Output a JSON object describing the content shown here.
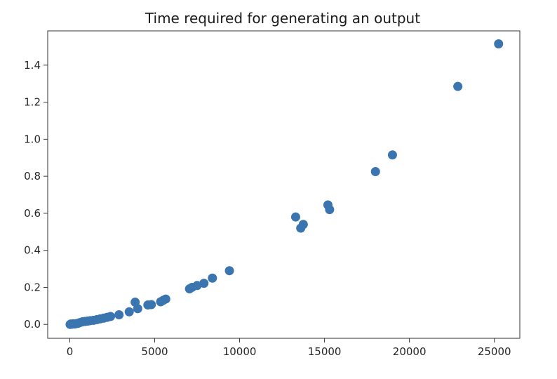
{
  "chart_data": {
    "type": "scatter",
    "title": "Time required for generating an output",
    "xlabel": "",
    "ylabel": "",
    "xlim": [
      -1300,
      26500
    ],
    "ylim": [
      -0.075,
      1.585
    ],
    "xticks": [
      0,
      5000,
      10000,
      15000,
      20000,
      25000
    ],
    "xtick_labels": [
      "0",
      "5000",
      "10000",
      "15000",
      "20000",
      "25000"
    ],
    "yticks": [
      0.0,
      0.2,
      0.4,
      0.6,
      0.8,
      1.0,
      1.2,
      1.4
    ],
    "ytick_labels": [
      "0.0",
      "0.2",
      "0.4",
      "0.6",
      "0.8",
      "1.0",
      "1.2",
      "1.4"
    ],
    "grid": false,
    "marker_color": "#3a75b0",
    "series": [
      {
        "points": [
          [
            20,
            0.0
          ],
          [
            60,
            0.002
          ],
          [
            120,
            0.001
          ],
          [
            200,
            0.003
          ],
          [
            280,
            0.002
          ],
          [
            380,
            0.004
          ],
          [
            480,
            0.006
          ],
          [
            600,
            0.01
          ],
          [
            750,
            0.014
          ],
          [
            900,
            0.016
          ],
          [
            1050,
            0.018
          ],
          [
            1200,
            0.02
          ],
          [
            1400,
            0.022
          ],
          [
            1600,
            0.026
          ],
          [
            1800,
            0.03
          ],
          [
            2000,
            0.034
          ],
          [
            2200,
            0.038
          ],
          [
            2400,
            0.043
          ],
          [
            2900,
            0.052
          ],
          [
            3500,
            0.068
          ],
          [
            3850,
            0.12
          ],
          [
            4000,
            0.085
          ],
          [
            4600,
            0.105
          ],
          [
            4800,
            0.107
          ],
          [
            5350,
            0.122
          ],
          [
            5500,
            0.13
          ],
          [
            5650,
            0.137
          ],
          [
            7050,
            0.192
          ],
          [
            7200,
            0.2
          ],
          [
            7500,
            0.21
          ],
          [
            7900,
            0.222
          ],
          [
            8400,
            0.25
          ],
          [
            9400,
            0.29
          ],
          [
            13300,
            0.58
          ],
          [
            13600,
            0.52
          ],
          [
            13750,
            0.54
          ],
          [
            15200,
            0.645
          ],
          [
            15300,
            0.62
          ],
          [
            18000,
            0.825
          ],
          [
            19000,
            0.915
          ],
          [
            22850,
            1.285
          ],
          [
            25250,
            1.515
          ]
        ]
      }
    ]
  }
}
